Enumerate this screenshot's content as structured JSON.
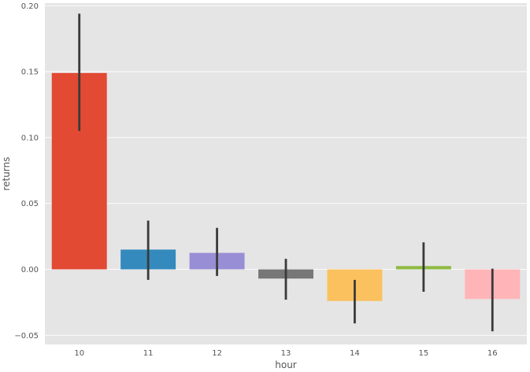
{
  "chart_data": {
    "type": "bar",
    "title": "",
    "xlabel": "hour",
    "ylabel": "returns",
    "categories": [
      "10",
      "11",
      "12",
      "13",
      "14",
      "15",
      "16"
    ],
    "values": [
      0.149,
      0.015,
      0.0125,
      -0.007,
      -0.024,
      0.0025,
      -0.0225
    ],
    "error_low": [
      0.105,
      -0.008,
      -0.005,
      -0.023,
      -0.041,
      -0.017,
      -0.047
    ],
    "error_high": [
      0.194,
      0.037,
      0.0315,
      0.008,
      -0.008,
      0.0205,
      0.0005
    ],
    "ylim": [
      -0.057,
      0.202
    ],
    "yticks": [
      -0.05,
      0.0,
      0.05,
      0.1,
      0.15,
      0.2
    ],
    "ytick_labels": [
      "−0.05",
      "0.00",
      "0.05",
      "0.10",
      "0.15",
      "0.20"
    ],
    "grid": true,
    "style": "ggplot",
    "colors": {
      "background": "#e5e5e5",
      "grid": "#ffffff",
      "error_bar": "#3a3a3a",
      "bars": [
        "#e24a33",
        "#348abd",
        "#988ed5",
        "#777777",
        "#fbc15e",
        "#8eba42",
        "#ffb5b8"
      ]
    }
  }
}
